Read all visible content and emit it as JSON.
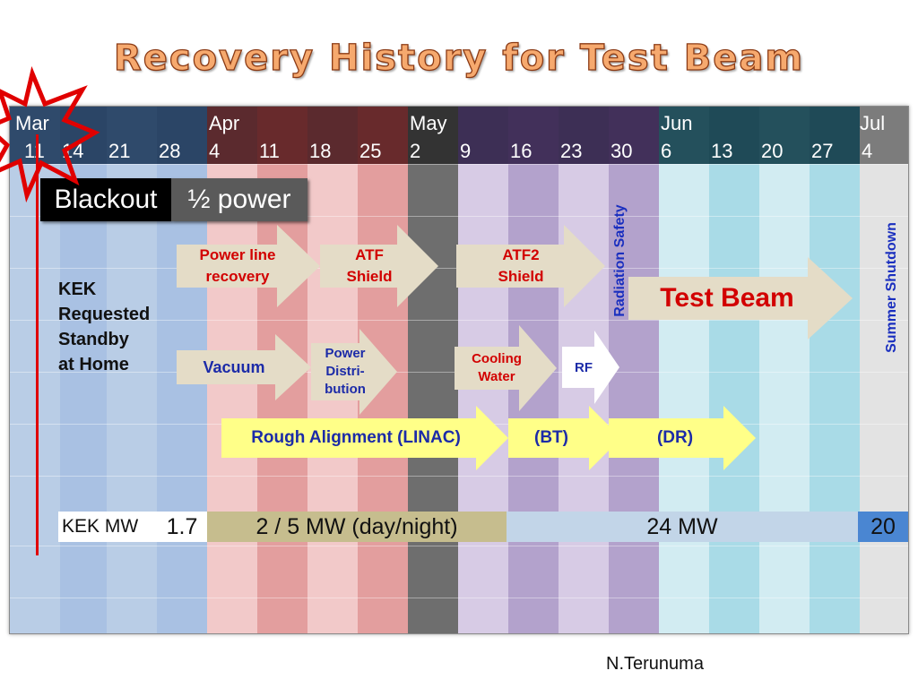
{
  "title": "Recovery History for Test Beam",
  "timeline": {
    "months": [
      "Mar",
      "Apr",
      "May",
      "Jun",
      "Jul"
    ],
    "days": [
      "11",
      "14",
      "21",
      "28",
      "4",
      "11",
      "18",
      "25",
      "2",
      "9",
      "16",
      "23",
      "30",
      "6",
      "13",
      "20",
      "27",
      "4"
    ]
  },
  "phases": {
    "blackout": "Blackout",
    "half_power": "½ power"
  },
  "standby_note": "KEK\nRequested\nStandby\nat Home",
  "tasks": {
    "power_line": "Power line\nrecovery",
    "atf_shield": "ATF\nShield",
    "atf2_shield": "ATF2\nShield",
    "test_beam": "Test Beam",
    "vacuum": "Vacuum",
    "power_distribution": "Power\nDistri-\nbution",
    "cooling_water": "Cooling\nWater",
    "rf": "RF",
    "rough_alignment": "Rough Alignment (LINAC)",
    "bt": "(BT)",
    "dr": "(DR)"
  },
  "vertical_labels": {
    "radiation_safety": "Radiation Safety",
    "summer_shutdown": "Summer Shutdown"
  },
  "power_row": {
    "label": "KEK MW",
    "segments": [
      "1.7",
      "2 / 5 MW (day/night)",
      "24 MW",
      "20"
    ]
  },
  "footer": "N.Terunuma",
  "colors": {
    "blue": "#b7cbe6",
    "red": "#e2a0a0",
    "gray": "#707070",
    "purple": "#c7b9d9",
    "cyan": "#b4dde6",
    "arrow_fill": "#e4dcc7",
    "yellow": "#ffff88",
    "task_red": "#d20000",
    "task_blue": "#1c2ba8"
  }
}
